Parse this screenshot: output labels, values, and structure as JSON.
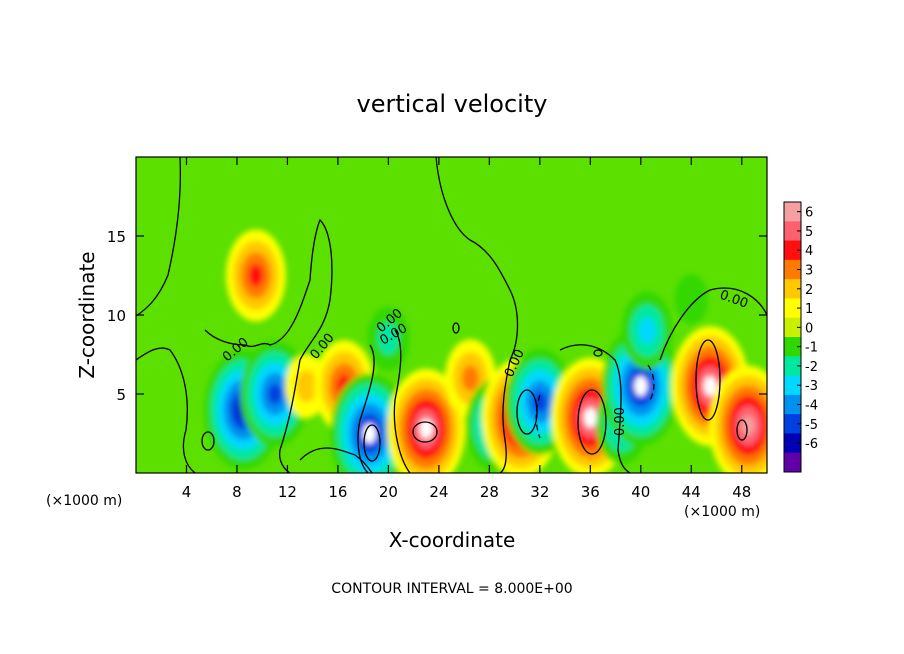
{
  "chart_data": {
    "type": "heatmap",
    "title": "vertical velocity",
    "xlabel": "X-coordinate",
    "ylabel": "Z-coordinate",
    "x_unit": "(×1000 m)",
    "x_unit_right": "(×1000 m)",
    "footer": "CONTOUR INTERVAL = 8.000E+00",
    "xlim": [
      0,
      50
    ],
    "ylim": [
      0,
      20
    ],
    "x_ticks": [
      4,
      8,
      12,
      16,
      20,
      24,
      28,
      32,
      36,
      40,
      44,
      48
    ],
    "y_ticks": [
      5,
      10,
      15
    ],
    "contour_labels": [
      "0.00",
      "0.00",
      "0.00",
      "0.00",
      "0.00",
      "0.00",
      "0.00"
    ],
    "colorbar": {
      "ticks": [
        6,
        5,
        4,
        3,
        2,
        1,
        0,
        -1,
        -2,
        -3,
        -4,
        -5,
        -6
      ],
      "colors": [
        "#f4a0a0",
        "#ff6070",
        "#ff1010",
        "#ff7a00",
        "#ffc800",
        "#ffff00",
        "#c8f000",
        "#30d800",
        "#00e8a0",
        "#00d8ff",
        "#0090f0",
        "#0040e0",
        "#0000b4",
        "#6000a8"
      ]
    },
    "field": {
      "background": 0.6,
      "features": [
        {
          "x": 9.5,
          "z": 12.5,
          "value": 3.5
        },
        {
          "x": 8.5,
          "z": 4.0,
          "value": -5.5
        },
        {
          "x": 11.0,
          "z": 5.0,
          "value": -4.5
        },
        {
          "x": 13.5,
          "z": 5.5,
          "value": 2.0
        },
        {
          "x": 16.5,
          "z": 5.5,
          "value": 4.0
        },
        {
          "x": 18.5,
          "z": 2.5,
          "value": -6.0
        },
        {
          "x": 23.0,
          "z": 2.8,
          "value": 6.0
        },
        {
          "x": 26.5,
          "z": 6.0,
          "value": 3.0
        },
        {
          "x": 28.5,
          "z": 3.0,
          "value": -4.0
        },
        {
          "x": 30.5,
          "z": 3.5,
          "value": 6.0
        },
        {
          "x": 32.0,
          "z": 4.5,
          "value": -4.5
        },
        {
          "x": 36.0,
          "z": 3.5,
          "value": 6.0
        },
        {
          "x": 38.5,
          "z": 3.0,
          "value": -3.0
        },
        {
          "x": 40.0,
          "z": 5.5,
          "value": -6.0
        },
        {
          "x": 40.5,
          "z": 9.0,
          "value": -2.5
        },
        {
          "x": 45.5,
          "z": 5.5,
          "value": 6.0
        },
        {
          "x": 48.5,
          "z": 3.0,
          "value": 5.5
        },
        {
          "x": 44.0,
          "z": 11.0,
          "value": -1.0
        },
        {
          "x": 20.0,
          "z": 8.5,
          "value": -1.5
        }
      ]
    }
  }
}
